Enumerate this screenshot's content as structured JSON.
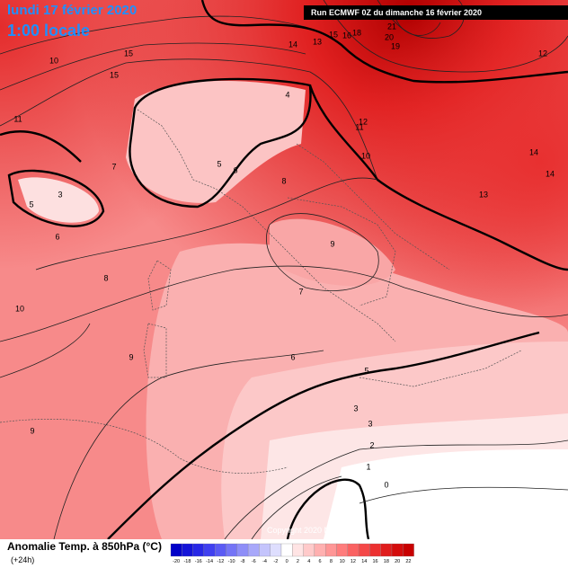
{
  "header": {
    "date": "lundi 17 février 2020",
    "time": "1:00 locale",
    "run": "Run ECMWF 0Z du dimanche 16 février 2020"
  },
  "copyright": "Copyright 2020 Meteociel.fr",
  "legend": {
    "title": "Anomalie Temp. à 850hPa (°C)",
    "lead": "(+24h)",
    "ticks": [
      -20,
      -18,
      -16,
      -14,
      -12,
      -10,
      -8,
      -6,
      -4,
      -2,
      0,
      2,
      4,
      6,
      8,
      10,
      12,
      14,
      16,
      18,
      20,
      22
    ],
    "colors": [
      "#0000c8",
      "#1414d8",
      "#2828e6",
      "#4040f0",
      "#5a5af4",
      "#7474f6",
      "#8e8ef8",
      "#a8a8fa",
      "#c4c4fc",
      "#dedefe",
      "#ffffff",
      "#ffe4e4",
      "#ffcaca",
      "#ffb0b0",
      "#ff9696",
      "#ff7c7c",
      "#fa6262",
      "#f44848",
      "#ec3030",
      "#e01c1c",
      "#d40c0c",
      "#c80000"
    ]
  },
  "contour_labels": [
    10,
    15,
    15,
    11,
    14,
    13,
    15,
    16,
    18,
    21,
    20,
    19,
    12,
    4,
    12,
    11,
    10,
    7,
    5,
    6,
    3,
    5,
    6,
    8,
    13,
    14,
    14,
    8,
    9,
    7,
    10,
    9,
    6,
    5,
    9,
    3,
    3,
    2,
    1,
    0
  ]
}
